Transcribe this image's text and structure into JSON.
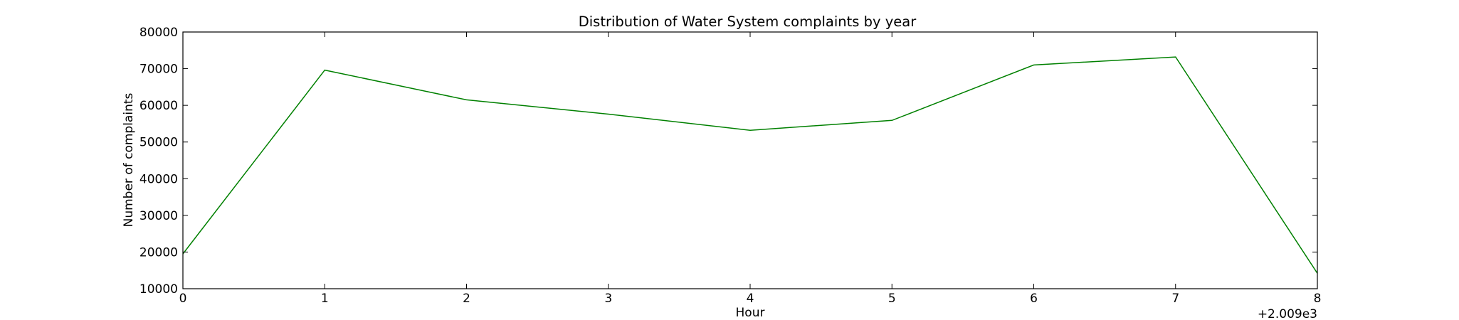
{
  "chart_data": {
    "type": "line",
    "title": "Distribution of  Water System complaints by year",
    "xlabel": "Hour",
    "ylabel": "Number of complaints",
    "x_offset_label": "+2.009e3",
    "xlim": [
      0,
      8
    ],
    "ylim": [
      10000,
      80000
    ],
    "xticks": [
      0,
      1,
      2,
      3,
      4,
      5,
      6,
      7,
      8
    ],
    "yticks": [
      10000,
      20000,
      30000,
      40000,
      50000,
      60000,
      70000,
      80000
    ],
    "grid": false,
    "series": [
      {
        "x": [
          0,
          1,
          2,
          3,
          4,
          5,
          6,
          7,
          8
        ],
        "values": [
          19500,
          69600,
          61500,
          57600,
          53200,
          55900,
          71000,
          73200,
          14200
        ],
        "color": "#008000"
      }
    ]
  }
}
